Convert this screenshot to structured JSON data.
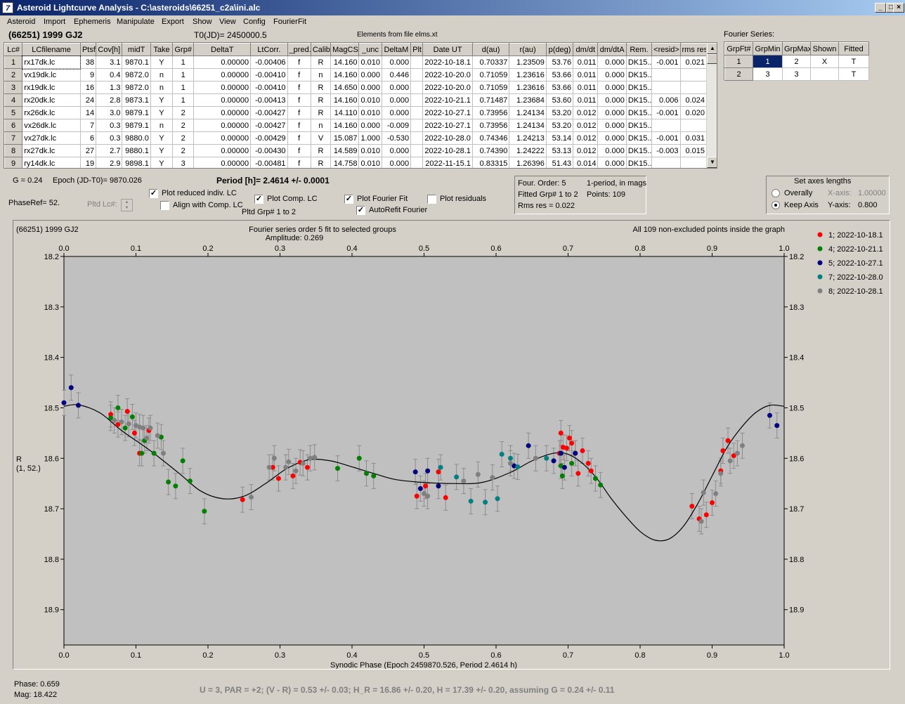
{
  "window": {
    "title": "Asteroid Lightcurve Analysis - C:\\asteroids\\66251_c2a\\ini.alc",
    "icon_glyph": "7"
  },
  "menu": [
    "Asteroid",
    "Import",
    "Ephemeris",
    "Manipulate",
    "Export",
    "Show",
    "View",
    "Config",
    "FourierFit"
  ],
  "header": {
    "asteroid": "(66251) 1999 GJ2",
    "t0": "T0(JD)= 2450000.5",
    "elements": "Elements from file elms.xt"
  },
  "lc_table": {
    "columns": [
      "Lc#",
      "LCfilename",
      "Ptsf",
      "Cov[h]",
      "midT",
      "Take",
      "Grp#",
      "DeltaT",
      "LtCorr.",
      "_pred.",
      "Calib",
      "MagCS",
      "_unc",
      "DeltaM",
      "Plt",
      "Date UT",
      "d(au)",
      "r(au)",
      "p(deg)",
      "dm/dt",
      "dm/dtA",
      "Rem.",
      "<resid>",
      "rms res"
    ],
    "rows": [
      [
        "1",
        "rx17dk.lc",
        "38",
        "3.1",
        "9870.1",
        "Y",
        "1",
        "0.00000",
        "-0.00406",
        "f",
        "R",
        "14.160",
        "0.010",
        "0.000",
        "",
        "2022-10-18.1",
        "0.70337",
        "1.23509",
        "53.76",
        "0.011",
        "0.000",
        "DK15..",
        "-0.001",
        "0.021"
      ],
      [
        "2",
        "vx19dk.lc",
        "9",
        "0.4",
        "9872.0",
        "n",
        "1",
        "0.00000",
        "-0.00410",
        "f",
        "n",
        "14.160",
        "0.000",
        "0.446",
        "",
        "2022-10-20.0",
        "0.71059",
        "1.23616",
        "53.66",
        "0.011",
        "0.000",
        "DK15..",
        "",
        ""
      ],
      [
        "3",
        "rx19dk.lc",
        "16",
        "1.3",
        "9872.0",
        "n",
        "1",
        "0.00000",
        "-0.00410",
        "f",
        "R",
        "14.650",
        "0.000",
        "0.000",
        "",
        "2022-10-20.0",
        "0.71059",
        "1.23616",
        "53.66",
        "0.011",
        "0.000",
        "DK15..",
        "",
        ""
      ],
      [
        "4",
        "rx20dk.lc",
        "24",
        "2.8",
        "9873.1",
        "Y",
        "1",
        "0.00000",
        "-0.00413",
        "f",
        "R",
        "14.160",
        "0.010",
        "0.000",
        "",
        "2022-10-21.1",
        "0.71487",
        "1.23684",
        "53.60",
        "0.011",
        "0.000",
        "DK15..",
        "0.006",
        "0.024"
      ],
      [
        "5",
        "rx26dk.lc",
        "14",
        "3.0",
        "9879.1",
        "Y",
        "2",
        "0.00000",
        "-0.00427",
        "f",
        "R",
        "14.110",
        "0.010",
        "0.000",
        "",
        "2022-10-27.1",
        "0.73956",
        "1.24134",
        "53.20",
        "0.012",
        "0.000",
        "DK15..",
        "-0.001",
        "0.020"
      ],
      [
        "6",
        "vx26dk.lc",
        "7",
        "0.3",
        "9879.1",
        "n",
        "2",
        "0.00000",
        "-0.00427",
        "f",
        "n",
        "14.160",
        "0.000",
        "-0.009",
        "",
        "2022-10-27.1",
        "0.73956",
        "1.24134",
        "53.20",
        "0.012",
        "0.000",
        "DK15..",
        "",
        ""
      ],
      [
        "7",
        "vx27dk.lc",
        "6",
        "0.3",
        "9880.0",
        "Y",
        "2",
        "0.00000",
        "-0.00429",
        "f",
        "V",
        "15.087",
        "1.000",
        "-0.530",
        "",
        "2022-10-28.0",
        "0.74346",
        "1.24213",
        "53.14",
        "0.012",
        "0.000",
        "DK15..",
        "-0.001",
        "0.031"
      ],
      [
        "8",
        "rx27dk.lc",
        "27",
        "2.7",
        "9880.1",
        "Y",
        "2",
        "0.00000",
        "-0.00430",
        "f",
        "R",
        "14.589",
        "0.010",
        "0.000",
        "",
        "2022-10-28.1",
        "0.74390",
        "1.24222",
        "53.13",
        "0.012",
        "0.000",
        "DK15..",
        "-0.003",
        "0.015"
      ],
      [
        "9",
        "ry14dk.lc",
        "19",
        "2.9",
        "9898.1",
        "Y",
        "3",
        "0.00000",
        "-0.00481",
        "f",
        "R",
        "14.758",
        "0.010",
        "0.000",
        "",
        "2022-11-15.1",
        "0.83315",
        "1.26396",
        "51.43",
        "0.014",
        "0.000",
        "DK15..",
        "",
        ""
      ]
    ]
  },
  "fourier": {
    "title": "Fourier Series:",
    "columns": [
      "GrpFt#",
      "GrpMin",
      "GrpMax",
      "Shown",
      "Fitted"
    ],
    "rows": [
      [
        "1",
        "1",
        "2",
        "X",
        "T"
      ],
      [
        "2",
        "3",
        "3",
        "",
        "T"
      ]
    ]
  },
  "params": {
    "g": "G = 0.24",
    "epoch": "Epoch (JD-T0)= 9870.026",
    "period": "Period [h]= 2.4614 +/- 0.0001",
    "phaseref": "PhaseRef= 52.",
    "pltd_lc": "Pltd Lc#:",
    "pltd_grp": "Pltd Grp#  1   to   2"
  },
  "checks": {
    "reduced": {
      "label": "Plot reduced indiv. LC",
      "checked": true
    },
    "align": {
      "label": "Align with Comp. LC",
      "checked": false
    },
    "comp": {
      "label": "Plot Comp. LC",
      "checked": true
    },
    "fourier": {
      "label": "Plot Fourier Fit",
      "checked": true
    },
    "residuals": {
      "label": "Plot residuals",
      "checked": false
    },
    "autorefit": {
      "label": "AutoRefit Fourier",
      "checked": true
    }
  },
  "info": {
    "order": "Four. Order:  5",
    "period_mode": "1-period, in mags",
    "fitted": "Fitted Grp# 1 to 2",
    "points": "Points: 109",
    "rms": "Rms res     = 0.022"
  },
  "axes_box": {
    "title": "Set axes lengths",
    "overally": "Overally",
    "keep": "Keep Axis",
    "xaxis_lbl": "X-axis:",
    "xaxis_val": "1.00000",
    "yaxis_lbl": "Y-axis:",
    "yaxis_val": "0.800",
    "selected": "keep"
  },
  "chart_data": {
    "type": "scatter",
    "title_left": "(66251) 1999 GJ2",
    "title": "Fourier series order 5 fit to selected groups",
    "subtitle": "Amplitude: 0.269",
    "note": "All 109 non-excluded points inside the graph",
    "xlabel": "Synodic Phase (Epoch 2459870.526, Period 2.4614 h)",
    "ylabel": "R",
    "ylabel2": "(1, 52.)",
    "xlim": [
      0,
      1
    ],
    "ylim": [
      18.97,
      18.2
    ],
    "xticks": [
      "0.0",
      "0.1",
      "0.2",
      "0.3",
      "0.4",
      "0.5",
      "0.6",
      "0.7",
      "0.8",
      "0.9",
      "1.0"
    ],
    "yticks": [
      "18.2",
      "18.3",
      "18.4",
      "18.5",
      "18.6",
      "18.7",
      "18.8",
      "18.9"
    ],
    "grid": false,
    "legend": "top-right",
    "error_bar": 0.025,
    "fit": [
      [
        0,
        18.497
      ],
      [
        0.02,
        18.494
      ],
      [
        0.05,
        18.51
      ],
      [
        0.08,
        18.545
      ],
      [
        0.12,
        18.585
      ],
      [
        0.16,
        18.63
      ],
      [
        0.19,
        18.665
      ],
      [
        0.22,
        18.68
      ],
      [
        0.25,
        18.675
      ],
      [
        0.28,
        18.65
      ],
      [
        0.31,
        18.62
      ],
      [
        0.34,
        18.603
      ],
      [
        0.37,
        18.605
      ],
      [
        0.4,
        18.617
      ],
      [
        0.43,
        18.63
      ],
      [
        0.46,
        18.642
      ],
      [
        0.5,
        18.648
      ],
      [
        0.54,
        18.65
      ],
      [
        0.58,
        18.648
      ],
      [
        0.62,
        18.628
      ],
      [
        0.65,
        18.605
      ],
      [
        0.68,
        18.59
      ],
      [
        0.7,
        18.592
      ],
      [
        0.72,
        18.61
      ],
      [
        0.74,
        18.64
      ],
      [
        0.76,
        18.68
      ],
      [
        0.78,
        18.715
      ],
      [
        0.8,
        18.745
      ],
      [
        0.82,
        18.762
      ],
      [
        0.84,
        18.76
      ],
      [
        0.86,
        18.735
      ],
      [
        0.88,
        18.69
      ],
      [
        0.9,
        18.635
      ],
      [
        0.92,
        18.58
      ],
      [
        0.94,
        18.54
      ],
      [
        0.96,
        18.51
      ],
      [
        0.98,
        18.495
      ],
      [
        1.0,
        18.497
      ]
    ],
    "series": [
      {
        "name": "1; 2022-10-18.1",
        "color": "#ff0000",
        "points": [
          [
            0.065,
            18.513
          ],
          [
            0.075,
            18.533
          ],
          [
            0.088,
            18.507
          ],
          [
            0.098,
            18.55
          ],
          [
            0.105,
            18.59
          ],
          [
            0.118,
            18.545
          ],
          [
            0.248,
            18.682
          ],
          [
            0.29,
            18.618
          ],
          [
            0.298,
            18.64
          ],
          [
            0.318,
            18.635
          ],
          [
            0.328,
            18.608
          ],
          [
            0.338,
            18.618
          ],
          [
            0.49,
            18.675
          ],
          [
            0.502,
            18.655
          ],
          [
            0.52,
            18.627
          ],
          [
            0.53,
            18.678
          ],
          [
            0.688,
            18.59
          ],
          [
            0.69,
            18.55
          ],
          [
            0.693,
            18.578
          ],
          [
            0.698,
            18.58
          ],
          [
            0.702,
            18.56
          ],
          [
            0.705,
            18.57
          ],
          [
            0.71,
            18.59
          ],
          [
            0.714,
            18.63
          ],
          [
            0.72,
            18.585
          ],
          [
            0.728,
            18.61
          ],
          [
            0.732,
            18.625
          ],
          [
            0.872,
            18.695
          ],
          [
            0.882,
            18.72
          ],
          [
            0.892,
            18.712
          ],
          [
            0.9,
            18.688
          ],
          [
            0.912,
            18.625
          ],
          [
            0.915,
            18.585
          ],
          [
            0.922,
            18.565
          ],
          [
            0.93,
            18.595
          ]
        ]
      },
      {
        "name": "4; 2022-10-21.1",
        "color": "#008000",
        "points": [
          [
            0.065,
            18.52
          ],
          [
            0.075,
            18.5
          ],
          [
            0.085,
            18.54
          ],
          [
            0.095,
            18.518
          ],
          [
            0.108,
            18.59
          ],
          [
            0.112,
            18.565
          ],
          [
            0.125,
            18.59
          ],
          [
            0.135,
            18.558
          ],
          [
            0.145,
            18.647
          ],
          [
            0.155,
            18.655
          ],
          [
            0.165,
            18.605
          ],
          [
            0.175,
            18.645
          ],
          [
            0.195,
            18.705
          ],
          [
            0.38,
            18.62
          ],
          [
            0.41,
            18.6
          ],
          [
            0.42,
            18.63
          ],
          [
            0.43,
            18.635
          ],
          [
            0.69,
            18.615
          ],
          [
            0.692,
            18.635
          ],
          [
            0.705,
            18.61
          ],
          [
            0.738,
            18.64
          ],
          [
            0.745,
            18.653
          ]
        ]
      },
      {
        "name": "5; 2022-10-27.1",
        "color": "#000080",
        "points": [
          [
            0.0,
            18.49
          ],
          [
            0.01,
            18.46
          ],
          [
            0.02,
            18.495
          ],
          [
            0.488,
            18.627
          ],
          [
            0.495,
            18.66
          ],
          [
            0.505,
            18.625
          ],
          [
            0.52,
            18.655
          ],
          [
            0.625,
            18.615
          ],
          [
            0.645,
            18.575
          ],
          [
            0.68,
            18.605
          ],
          [
            0.69,
            18.59
          ],
          [
            0.695,
            18.618
          ],
          [
            0.71,
            18.59
          ],
          [
            0.98,
            18.515
          ],
          [
            0.99,
            18.535
          ]
        ]
      },
      {
        "name": "7; 2022-10-28.0",
        "color": "#008080",
        "points": [
          [
            0.523,
            18.618
          ],
          [
            0.545,
            18.637
          ],
          [
            0.565,
            18.685
          ],
          [
            0.585,
            18.687
          ],
          [
            0.602,
            18.68
          ],
          [
            0.608,
            18.592
          ],
          [
            0.62,
            18.6
          ],
          [
            0.63,
            18.617
          ],
          [
            0.67,
            18.6
          ]
        ]
      },
      {
        "name": "8; 2022-10-28.1",
        "color": "#808080",
        "points": [
          [
            0.07,
            18.525
          ],
          [
            0.08,
            18.528
          ],
          [
            0.09,
            18.532
          ],
          [
            0.1,
            18.535
          ],
          [
            0.105,
            18.538
          ],
          [
            0.11,
            18.54
          ],
          [
            0.115,
            18.56
          ],
          [
            0.12,
            18.54
          ],
          [
            0.13,
            18.555
          ],
          [
            0.138,
            18.59
          ],
          [
            0.26,
            18.677
          ],
          [
            0.285,
            18.618
          ],
          [
            0.292,
            18.6
          ],
          [
            0.308,
            18.618
          ],
          [
            0.312,
            18.607
          ],
          [
            0.322,
            18.625
          ],
          [
            0.332,
            18.61
          ],
          [
            0.342,
            18.6
          ],
          [
            0.348,
            18.598
          ],
          [
            0.5,
            18.67
          ],
          [
            0.505,
            18.675
          ],
          [
            0.555,
            18.645
          ],
          [
            0.575,
            18.632
          ],
          [
            0.595,
            18.638
          ],
          [
            0.62,
            18.61
          ],
          [
            0.655,
            18.6
          ],
          [
            0.885,
            18.725
          ],
          [
            0.888,
            18.668
          ],
          [
            0.905,
            18.67
          ],
          [
            0.912,
            18.63
          ],
          [
            0.925,
            18.605
          ],
          [
            0.935,
            18.59
          ],
          [
            0.942,
            18.575
          ]
        ]
      }
    ]
  },
  "status": {
    "phase": "Phase:  0.659",
    "mag": "Mag:    18.422",
    "result": "U = 3, PAR = +2; (V - R) = 0.53 +/- 0.03; H_R = 16.86 +/- 0.20, H = 17.39 +/- 0.20, assuming G = 0.24 +/- 0.11"
  }
}
